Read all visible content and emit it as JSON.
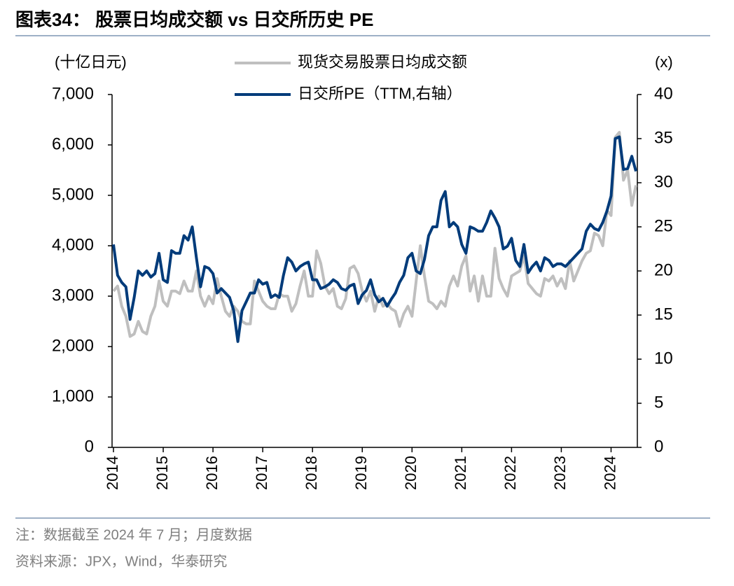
{
  "chart_data": {
    "type": "line",
    "title": "图表34： 股票日均成交额 vs 日交所历史 PE",
    "y_label": "(十亿日元)",
    "y2_label": "(x)",
    "notes": [
      "注：数据截至 2024 年 7 月；月度数据",
      "资料来源：JPX，Wind，华泰研究"
    ],
    "x": [
      "2014-01",
      "2014-02",
      "2014-03",
      "2014-04",
      "2014-05",
      "2014-06",
      "2014-07",
      "2014-08",
      "2014-09",
      "2014-10",
      "2014-11",
      "2014-12",
      "2015-01",
      "2015-02",
      "2015-03",
      "2015-04",
      "2015-05",
      "2015-06",
      "2015-07",
      "2015-08",
      "2015-09",
      "2015-10",
      "2015-11",
      "2015-12",
      "2016-01",
      "2016-02",
      "2016-03",
      "2016-04",
      "2016-05",
      "2016-06",
      "2016-07",
      "2016-08",
      "2016-09",
      "2016-10",
      "2016-11",
      "2016-12",
      "2017-01",
      "2017-02",
      "2017-03",
      "2017-04",
      "2017-05",
      "2017-06",
      "2017-07",
      "2017-08",
      "2017-09",
      "2017-10",
      "2017-11",
      "2017-12",
      "2018-01",
      "2018-02",
      "2018-03",
      "2018-04",
      "2018-05",
      "2018-06",
      "2018-07",
      "2018-08",
      "2018-09",
      "2018-10",
      "2018-11",
      "2018-12",
      "2019-01",
      "2019-02",
      "2019-03",
      "2019-04",
      "2019-05",
      "2019-06",
      "2019-07",
      "2019-08",
      "2019-09",
      "2019-10",
      "2019-11",
      "2019-12",
      "2020-01",
      "2020-02",
      "2020-03",
      "2020-04",
      "2020-05",
      "2020-06",
      "2020-07",
      "2020-08",
      "2020-09",
      "2020-10",
      "2020-11",
      "2020-12",
      "2021-01",
      "2021-02",
      "2021-03",
      "2021-04",
      "2021-05",
      "2021-06",
      "2021-07",
      "2021-08",
      "2021-09",
      "2021-10",
      "2021-11",
      "2021-12",
      "2022-01",
      "2022-02",
      "2022-03",
      "2022-04",
      "2022-05",
      "2022-06",
      "2022-07",
      "2022-08",
      "2022-09",
      "2022-10",
      "2022-11",
      "2022-12",
      "2023-01",
      "2023-02",
      "2023-03",
      "2023-04",
      "2023-05",
      "2023-06",
      "2023-07",
      "2023-08",
      "2023-09",
      "2023-10",
      "2023-11",
      "2023-12",
      "2024-01",
      "2024-02",
      "2024-03",
      "2024-04",
      "2024-05",
      "2024-06",
      "2024-07"
    ],
    "series": [
      {
        "name": "现货交易股票日均成交额",
        "color": "#bfbfbf",
        "values": [
          3100,
          3200,
          2800,
          2600,
          2200,
          2250,
          2500,
          2300,
          2250,
          2600,
          2800,
          3300,
          2900,
          2800,
          3100,
          3100,
          3050,
          3300,
          3100,
          3100,
          3500,
          3000,
          2800,
          3000,
          2850,
          3350,
          3000,
          2700,
          2600,
          2800,
          2700,
          2500,
          2450,
          2450,
          3300,
          3100,
          2900,
          2800,
          2750,
          2750,
          3050,
          3000,
          3000,
          2700,
          2850,
          3200,
          3500,
          3000,
          3000,
          3900,
          3650,
          3200,
          3050,
          3150,
          2800,
          2750,
          2950,
          3550,
          3600,
          3450,
          3100,
          2900,
          3100,
          2700,
          3000,
          2800,
          2850,
          2750,
          2700,
          2400,
          2650,
          2800,
          2600,
          3300,
          4000,
          3400,
          2900,
          2850,
          2750,
          2900,
          2800,
          3200,
          3400,
          3200,
          3600,
          3800,
          3100,
          3400,
          2900,
          3400,
          3000,
          3000,
          3950,
          3350,
          3150,
          3000,
          3400,
          3450,
          3500,
          3800,
          3250,
          3150,
          3050,
          3000,
          3350,
          3300,
          3400,
          3200,
          3350,
          3150,
          3700,
          3300,
          3500,
          3700,
          3850,
          3900,
          4250,
          4200,
          4000,
          4700,
          4600,
          6150,
          6250,
          5300,
          5500,
          4800,
          5200
        ]
      },
      {
        "name": "日交所PE（TTM,右轴）",
        "color": "#003b7a",
        "axis": "y2",
        "values": [
          23,
          19.5,
          18.7,
          18.2,
          14.5,
          17,
          20,
          19.5,
          20,
          19.3,
          19.7,
          22,
          19,
          18.7,
          22.3,
          22,
          22,
          24,
          23.5,
          25,
          21.5,
          18.2,
          20.5,
          20.3,
          19.7,
          17.5,
          18,
          17.5,
          17,
          15.5,
          12,
          15.5,
          16.5,
          17.5,
          17.5,
          19,
          18.5,
          18.7,
          17,
          17.3,
          17,
          19.5,
          21.5,
          21,
          20,
          20.5,
          20.8,
          21,
          19,
          19,
          18,
          18.2,
          18.5,
          19,
          18.7,
          18,
          17.8,
          18.3,
          18.5,
          16.3,
          17.3,
          17.8,
          19,
          17.3,
          16.5,
          16.9,
          16,
          16.8,
          17.5,
          18.7,
          19.5,
          21.5,
          22,
          20,
          19.7,
          21.3,
          24,
          25,
          25,
          28,
          29,
          25,
          25.5,
          25,
          23,
          22,
          25,
          24.8,
          24.5,
          24.5,
          25.5,
          26.8,
          26,
          25,
          22.5,
          22.8,
          23.7,
          21.2,
          20.5,
          23,
          19.8,
          20.5,
          21,
          20,
          21.5,
          21.2,
          20.5,
          20.8,
          20.8,
          20.5,
          21,
          21.5,
          22,
          22.5,
          24.5,
          25.3,
          24.8,
          24.6,
          25.5,
          26.8,
          28.5,
          35,
          35.2,
          31.5,
          31.6,
          33,
          31.3
        ]
      }
    ],
    "xlim": [
      2014,
      2024.5
    ],
    "xticks": [
      2014,
      2015,
      2016,
      2017,
      2018,
      2019,
      2020,
      2021,
      2022,
      2023,
      2024
    ],
    "ylim": [
      0,
      7000
    ],
    "yticks": [
      0,
      {
        "value": 1000,
        "label": "1,000"
      },
      {
        "value": 2000,
        "label": "2,000"
      },
      {
        "value": 3000,
        "label": "3,000"
      },
      {
        "value": 4000,
        "label": "4,000"
      },
      {
        "value": 5000,
        "label": "5,000"
      },
      {
        "value": 6000,
        "label": "6,000"
      },
      {
        "value": 7000,
        "label": "7,000"
      }
    ],
    "y2lim": [
      0,
      40
    ],
    "y2ticks": [
      0,
      5,
      10,
      15,
      20,
      25,
      30,
      35,
      40
    ]
  }
}
